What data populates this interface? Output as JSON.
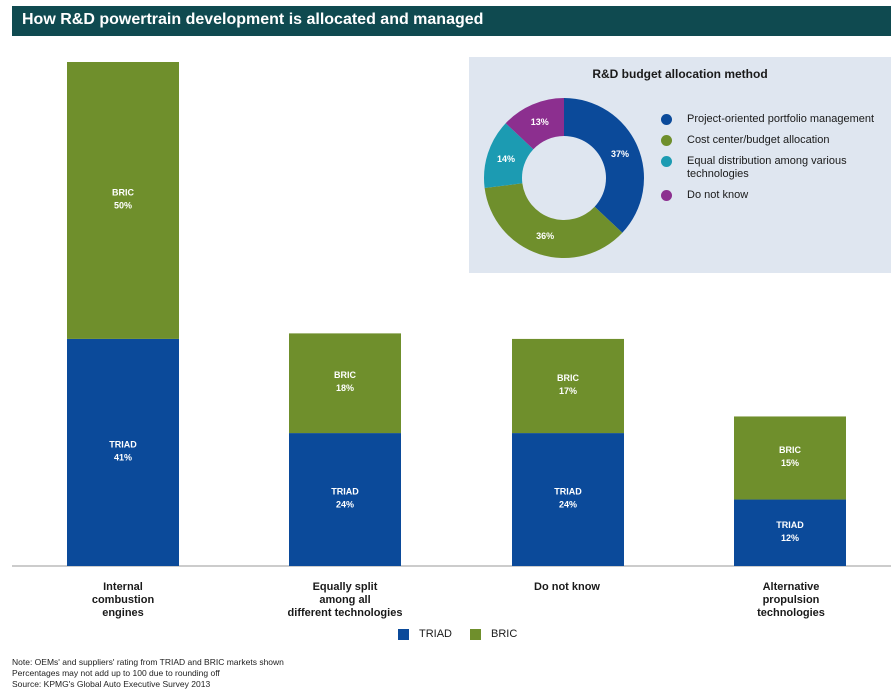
{
  "header": {
    "title": "How R&D powertrain development is allocated and managed"
  },
  "colors": {
    "triad": "#0b4a9a",
    "bric": "#6f8f2c",
    "header_bg": "#0f4a50",
    "panel_bg": "#dfe6f0"
  },
  "chart_data": [
    {
      "type": "bar",
      "stacked": true,
      "categories": [
        "Internal combustion engines",
        "Equally split among all different technologies",
        "Do not know",
        "Alternative propulsion technologies"
      ],
      "category_labels": [
        "Internal\ncombustion\nengines",
        "Equally split\namong all\ndifferent technologies",
        "Do not know",
        "Alternative\npropulsion\ntechnologies"
      ],
      "series": [
        {
          "name": "TRIAD",
          "values": [
            41,
            24,
            24,
            12
          ],
          "labels": [
            "41%",
            "24%",
            "24%",
            "12%"
          ]
        },
        {
          "name": "BRIC",
          "values": [
            50,
            18,
            17,
            15
          ],
          "labels": [
            "50%",
            "18%",
            "17%",
            "15%"
          ]
        }
      ],
      "ylim": [
        0,
        91
      ],
      "grid": false,
      "legend": "bottom"
    },
    {
      "type": "pie",
      "donut": true,
      "title": "R&D budget allocation method",
      "labels": [
        "Project-oriented portfolio management",
        "Cost center/budget allocation",
        "Equal distribution among various technologies",
        "Do not know"
      ],
      "values": [
        37,
        36,
        14,
        13
      ],
      "value_labels": [
        "37%",
        "36%",
        "14%",
        "13%"
      ],
      "colors": [
        "#0b4a9a",
        "#6f8f2c",
        "#1c9bb2",
        "#8c2f8f"
      ],
      "legend": "right"
    }
  ],
  "notes": [
    "Note: OEMs' and suppliers' rating from TRIAD and BRIC markets shown",
    "Percentages may not add up to 100 due to rounding off",
    "Source: KPMG's Global Auto Executive Survey 2013"
  ]
}
